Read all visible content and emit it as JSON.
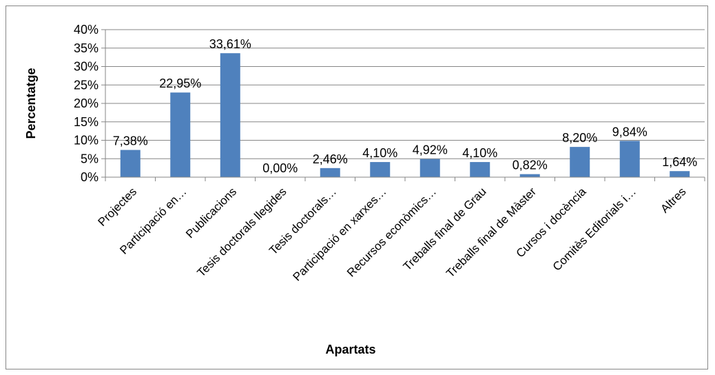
{
  "chart_data": {
    "type": "bar",
    "title": "",
    "xlabel": "Apartats",
    "ylabel": "Percentatge",
    "ylim": [
      0,
      40
    ],
    "yticks": [
      0,
      5,
      10,
      15,
      20,
      25,
      30,
      35,
      40
    ],
    "ytick_labels": [
      "0%",
      "5%",
      "10%",
      "15%",
      "20%",
      "25%",
      "30%",
      "35%",
      "40%"
    ],
    "grid": true,
    "legend": "none",
    "bar_color": "#4F81BD",
    "categories": [
      "Projectes",
      "Participació en…",
      "Publicacions",
      "Tesis doctorals llegides",
      "Tesis doctorals…",
      "Participació en xarxes…",
      "Recursos econòmics…",
      "Treballs final de Grau",
      "Treballs final de Màster",
      "Cursos i docència",
      "Comitès Editorials i…",
      "Altres"
    ],
    "values": [
      7.38,
      22.95,
      33.61,
      0.0,
      2.46,
      4.1,
      4.92,
      4.1,
      0.82,
      8.2,
      9.84,
      1.64
    ],
    "data_labels": [
      "7,38%",
      "22,95%",
      "33,61%",
      "0,00%",
      "2,46%",
      "4,10%",
      "4,92%",
      "4,10%",
      "0,82%",
      "8,20%",
      "9,84%",
      "1,64%"
    ]
  }
}
